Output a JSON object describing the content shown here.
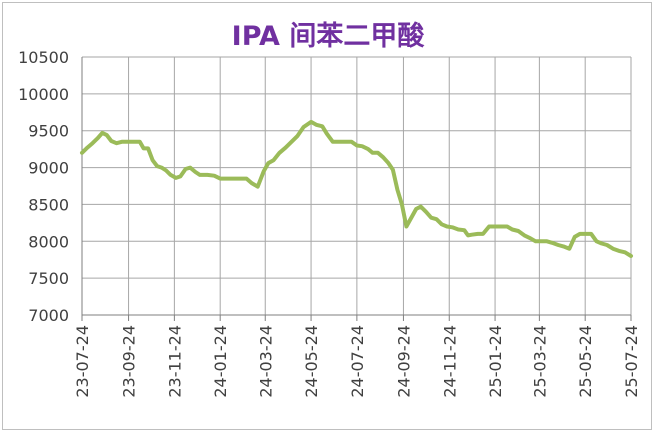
{
  "chart_data": {
    "type": "line",
    "title": "IPA 间苯二甲酸",
    "xlabel": "",
    "ylabel": "",
    "ylim": [
      7000,
      10500
    ],
    "yticks": [
      7000,
      7500,
      8000,
      8500,
      9000,
      9500,
      10000,
      10500
    ],
    "xlim": [
      "2023-07-24",
      "2025-07-24"
    ],
    "xtick_labels": [
      "23-07-24",
      "23-09-24",
      "23-11-24",
      "24-01-24",
      "24-03-24",
      "24-05-24",
      "24-07-24",
      "24-09-24",
      "24-11-24",
      "25-01-24",
      "25-03-24",
      "25-05-24",
      "25-07-24"
    ],
    "xtick_dates": [
      "2023-07-24",
      "2023-09-24",
      "2023-11-24",
      "2024-01-24",
      "2024-03-24",
      "2024-05-24",
      "2024-07-24",
      "2024-09-24",
      "2024-11-24",
      "2025-01-24",
      "2025-03-24",
      "2025-05-24",
      "2025-07-24"
    ],
    "grid": true,
    "legend": "none",
    "line_color": "#9bbb59",
    "series": [
      {
        "name": "",
        "points": [
          [
            "2023-07-24",
            9200
          ],
          [
            "2023-07-30",
            9260
          ],
          [
            "2023-08-07",
            9330
          ],
          [
            "2023-08-14",
            9400
          ],
          [
            "2023-08-20",
            9470
          ],
          [
            "2023-08-26",
            9440
          ],
          [
            "2023-09-01",
            9360
          ],
          [
            "2023-09-08",
            9330
          ],
          [
            "2023-09-15",
            9350
          ],
          [
            "2023-09-24",
            9350
          ],
          [
            "2023-10-02",
            9350
          ],
          [
            "2023-10-09",
            9350
          ],
          [
            "2023-10-14",
            9260
          ],
          [
            "2023-10-20",
            9260
          ],
          [
            "2023-10-26",
            9100
          ],
          [
            "2023-11-01",
            9020
          ],
          [
            "2023-11-07",
            9000
          ],
          [
            "2023-11-13",
            8960
          ],
          [
            "2023-11-19",
            8900
          ],
          [
            "2023-11-26",
            8860
          ],
          [
            "2023-12-02",
            8880
          ],
          [
            "2023-12-09",
            8980
          ],
          [
            "2023-12-15",
            9000
          ],
          [
            "2023-12-22",
            8940
          ],
          [
            "2023-12-28",
            8900
          ],
          [
            "2024-01-07",
            8900
          ],
          [
            "2024-01-16",
            8890
          ],
          [
            "2024-01-24",
            8850
          ],
          [
            "2024-02-02",
            8850
          ],
          [
            "2024-02-11",
            8850
          ],
          [
            "2024-02-20",
            8850
          ],
          [
            "2024-02-28",
            8850
          ],
          [
            "2024-03-06",
            8790
          ],
          [
            "2024-03-14",
            8740
          ],
          [
            "2024-03-22",
            8950
          ],
          [
            "2024-03-28",
            9060
          ],
          [
            "2024-04-04",
            9100
          ],
          [
            "2024-04-12",
            9200
          ],
          [
            "2024-04-20",
            9270
          ],
          [
            "2024-04-28",
            9350
          ],
          [
            "2024-05-06",
            9430
          ],
          [
            "2024-05-14",
            9550
          ],
          [
            "2024-05-24",
            9620
          ],
          [
            "2024-05-31",
            9580
          ],
          [
            "2024-06-08",
            9560
          ],
          [
            "2024-06-14",
            9460
          ],
          [
            "2024-06-22",
            9350
          ],
          [
            "2024-07-01",
            9350
          ],
          [
            "2024-07-09",
            9350
          ],
          [
            "2024-07-17",
            9350
          ],
          [
            "2024-07-24",
            9300
          ],
          [
            "2024-07-31",
            9290
          ],
          [
            "2024-08-08",
            9250
          ],
          [
            "2024-08-14",
            9200
          ],
          [
            "2024-08-21",
            9200
          ],
          [
            "2024-08-28",
            9140
          ],
          [
            "2024-09-04",
            9060
          ],
          [
            "2024-09-10",
            8970
          ],
          [
            "2024-09-16",
            8700
          ],
          [
            "2024-09-22",
            8500
          ],
          [
            "2024-09-28",
            8200
          ],
          [
            "2024-10-05",
            8330
          ],
          [
            "2024-10-11",
            8440
          ],
          [
            "2024-10-17",
            8470
          ],
          [
            "2024-10-24",
            8400
          ],
          [
            "2024-10-31",
            8320
          ],
          [
            "2024-11-07",
            8300
          ],
          [
            "2024-11-14",
            8230
          ],
          [
            "2024-11-21",
            8200
          ],
          [
            "2024-11-28",
            8190
          ],
          [
            "2024-12-06",
            8160
          ],
          [
            "2024-12-14",
            8150
          ],
          [
            "2024-12-19",
            8080
          ],
          [
            "2024-12-24",
            8090
          ],
          [
            "2025-01-01",
            8100
          ],
          [
            "2025-01-08",
            8100
          ],
          [
            "2025-01-16",
            8200
          ],
          [
            "2025-01-24",
            8200
          ],
          [
            "2025-02-01",
            8200
          ],
          [
            "2025-02-09",
            8200
          ],
          [
            "2025-02-16",
            8160
          ],
          [
            "2025-02-24",
            8140
          ],
          [
            "2025-03-04",
            8080
          ],
          [
            "2025-03-12",
            8040
          ],
          [
            "2025-03-19",
            8000
          ],
          [
            "2025-03-26",
            8000
          ],
          [
            "2025-04-03",
            8000
          ],
          [
            "2025-04-10",
            7980
          ],
          [
            "2025-04-18",
            7950
          ],
          [
            "2025-04-25",
            7930
          ],
          [
            "2025-05-03",
            7900
          ],
          [
            "2025-05-10",
            8060
          ],
          [
            "2025-05-17",
            8100
          ],
          [
            "2025-05-24",
            8100
          ],
          [
            "2025-06-01",
            8100
          ],
          [
            "2025-06-08",
            8000
          ],
          [
            "2025-06-15",
            7970
          ],
          [
            "2025-06-22",
            7950
          ],
          [
            "2025-06-30",
            7900
          ],
          [
            "2025-07-08",
            7870
          ],
          [
            "2025-07-16",
            7850
          ],
          [
            "2025-07-24",
            7800
          ]
        ]
      }
    ]
  }
}
